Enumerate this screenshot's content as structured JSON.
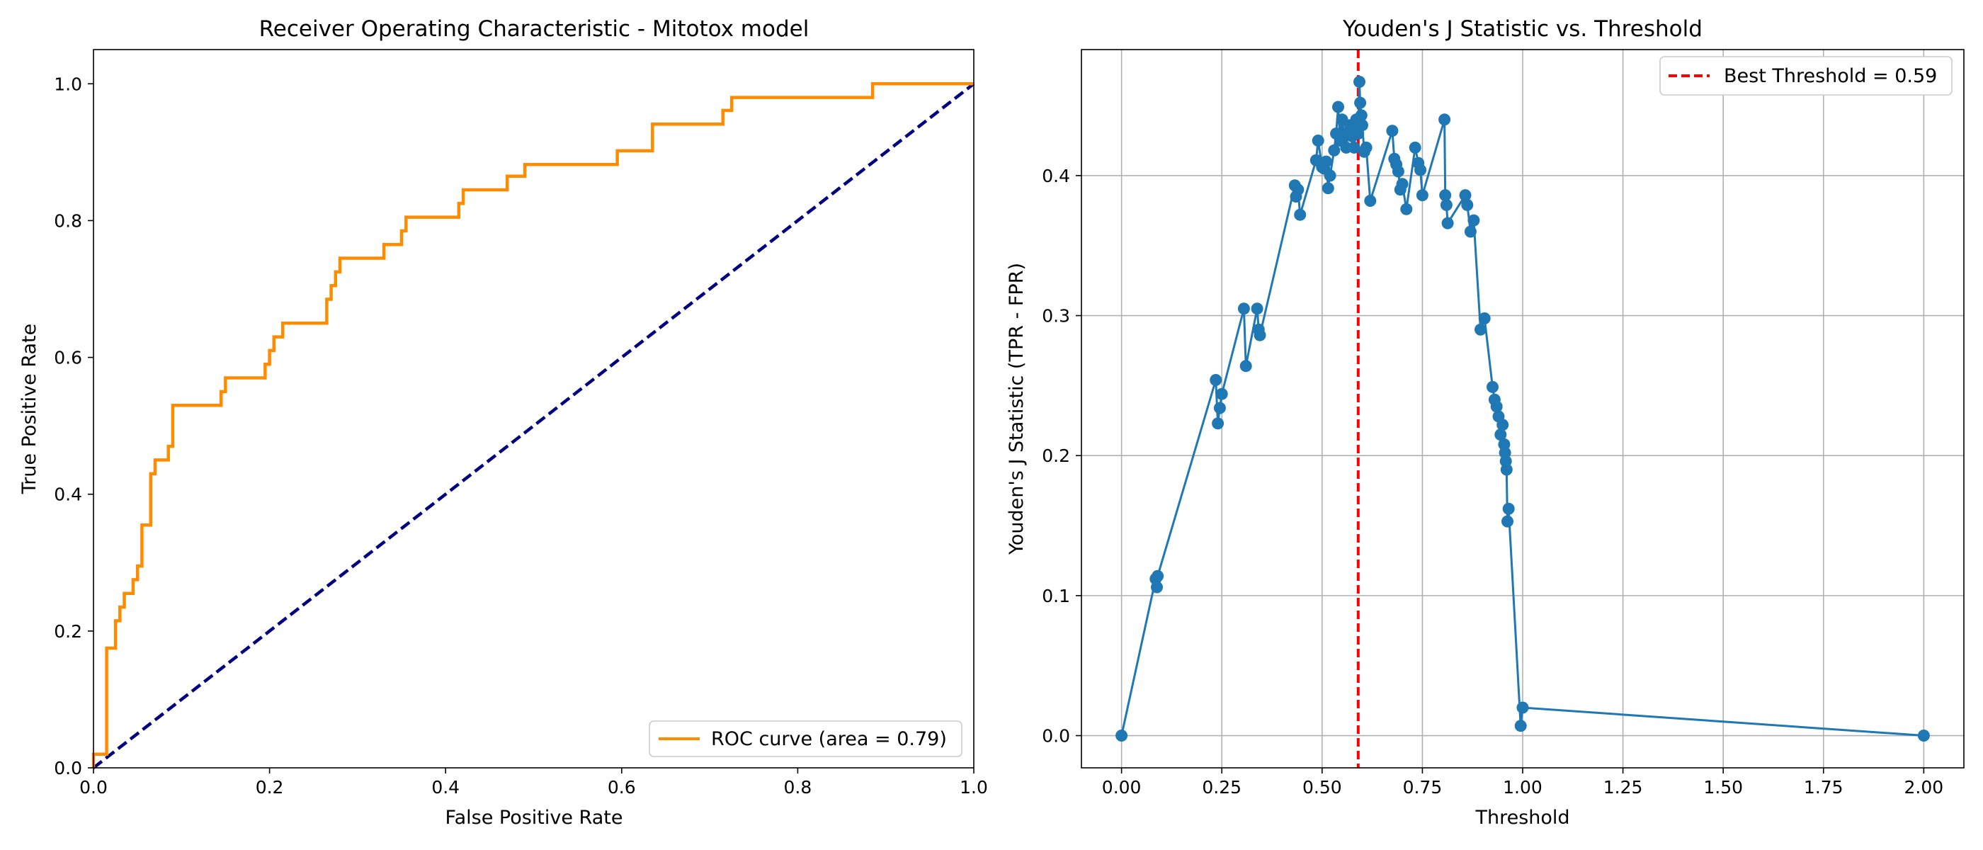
{
  "chart_data": [
    {
      "type": "line",
      "title": "Receiver Operating Characteristic - Mitotox model",
      "xlabel": "False Positive Rate",
      "ylabel": "True Positive Rate",
      "xlim": [
        0,
        1
      ],
      "ylim": [
        0,
        1.05
      ],
      "xticks": [
        0.0,
        0.2,
        0.4,
        0.6,
        0.8,
        1.0
      ],
      "yticks": [
        0.0,
        0.2,
        0.4,
        0.6,
        0.8,
        1.0
      ],
      "xtick_labels": [
        "0.0",
        "0.2",
        "0.4",
        "0.6",
        "0.8",
        "1.0"
      ],
      "ytick_labels": [
        "0.0",
        "0.2",
        "0.4",
        "0.6",
        "0.8",
        "1.0"
      ],
      "grid": false,
      "legend_position": "lower-right",
      "series": [
        {
          "name": "ROC curve (area = 0.79)",
          "color": "#ff8c00",
          "style": "step",
          "x": [
            0,
            0,
            0.015,
            0.015,
            0.025,
            0.025,
            0.03,
            0.03,
            0.035,
            0.035,
            0.045,
            0.045,
            0.05,
            0.05,
            0.055,
            0.055,
            0.065,
            0.065,
            0.07,
            0.07,
            0.085,
            0.085,
            0.09,
            0.09,
            0.145,
            0.145,
            0.15,
            0.15,
            0.195,
            0.195,
            0.2,
            0.2,
            0.205,
            0.205,
            0.215,
            0.215,
            0.265,
            0.265,
            0.27,
            0.27,
            0.275,
            0.275,
            0.28,
            0.28,
            0.33,
            0.33,
            0.35,
            0.35,
            0.355,
            0.355,
            0.415,
            0.415,
            0.42,
            0.42,
            0.47,
            0.47,
            0.49,
            0.49,
            0.595,
            0.595,
            0.635,
            0.635,
            0.715,
            0.715,
            0.725,
            0.725,
            0.885,
            0.885,
            1.0
          ],
          "y": [
            0,
            0.02,
            0.02,
            0.175,
            0.175,
            0.215,
            0.215,
            0.235,
            0.235,
            0.255,
            0.255,
            0.275,
            0.275,
            0.295,
            0.295,
            0.355,
            0.355,
            0.43,
            0.43,
            0.45,
            0.45,
            0.47,
            0.47,
            0.53,
            0.53,
            0.55,
            0.55,
            0.57,
            0.57,
            0.59,
            0.59,
            0.61,
            0.61,
            0.63,
            0.63,
            0.65,
            0.65,
            0.685,
            0.685,
            0.705,
            0.705,
            0.725,
            0.725,
            0.745,
            0.745,
            0.765,
            0.765,
            0.785,
            0.785,
            0.805,
            0.805,
            0.825,
            0.825,
            0.845,
            0.845,
            0.865,
            0.865,
            0.882,
            0.882,
            0.902,
            0.902,
            0.941,
            0.941,
            0.961,
            0.961,
            0.98,
            0.98,
            1.0,
            1.0
          ]
        },
        {
          "name": "",
          "color": "#000080",
          "style": "dashed",
          "x": [
            0,
            1
          ],
          "y": [
            0,
            1
          ]
        }
      ]
    },
    {
      "type": "line",
      "title": "Youden's J Statistic vs. Threshold",
      "xlabel": "Threshold",
      "ylabel": "Youden's J Statistic (TPR - FPR)",
      "xlim": [
        -0.1,
        2.1
      ],
      "ylim": [
        -0.023,
        0.49
      ],
      "xticks": [
        0.0,
        0.25,
        0.5,
        0.75,
        1.0,
        1.25,
        1.5,
        1.75,
        2.0
      ],
      "yticks": [
        0.0,
        0.1,
        0.2,
        0.3,
        0.4
      ],
      "xtick_labels": [
        "0.00",
        "0.25",
        "0.50",
        "0.75",
        "1.00",
        "1.25",
        "1.50",
        "1.75",
        "2.00"
      ],
      "ytick_labels": [
        "0.0",
        "0.1",
        "0.2",
        "0.3",
        "0.4"
      ],
      "grid": true,
      "legend_position": "upper-right",
      "best_threshold": {
        "label": "Best Threshold = 0.59",
        "x": 0.59,
        "color": "#ff0000"
      },
      "series": [
        {
          "name": "",
          "color": "#1f77b4",
          "marker": "circle",
          "x": [
            2.0,
            1.0,
            0.995,
            0.965,
            0.962,
            0.96,
            0.958,
            0.956,
            0.954,
            0.95,
            0.945,
            0.94,
            0.935,
            0.93,
            0.925,
            0.905,
            0.895,
            0.878,
            0.87,
            0.862,
            0.857,
            0.813,
            0.81,
            0.807,
            0.805,
            0.75,
            0.745,
            0.74,
            0.732,
            0.71,
            0.7,
            0.695,
            0.69,
            0.685,
            0.68,
            0.675,
            0.62,
            0.61,
            0.605,
            0.6,
            0.598,
            0.595,
            0.593,
            0.59,
            0.585,
            0.58,
            0.575,
            0.57,
            0.565,
            0.56,
            0.555,
            0.55,
            0.545,
            0.54,
            0.535,
            0.53,
            0.52,
            0.515,
            0.51,
            0.505,
            0.5,
            0.49,
            0.485,
            0.445,
            0.44,
            0.435,
            0.432,
            0.345,
            0.342,
            0.338,
            0.31,
            0.305,
            0.25,
            0.245,
            0.24,
            0.235,
            0.09,
            0.088,
            0.085,
            0.0
          ],
          "y": [
            0.0,
            0.02,
            0.007,
            0.162,
            0.153,
            0.19,
            0.196,
            0.202,
            0.208,
            0.222,
            0.215,
            0.228,
            0.235,
            0.24,
            0.249,
            0.298,
            0.29,
            0.368,
            0.36,
            0.379,
            0.386,
            0.366,
            0.379,
            0.386,
            0.44,
            0.386,
            0.404,
            0.409,
            0.42,
            0.376,
            0.394,
            0.39,
            0.403,
            0.408,
            0.412,
            0.432,
            0.382,
            0.42,
            0.417,
            0.436,
            0.443,
            0.452,
            0.467,
            0.43,
            0.44,
            0.42,
            0.428,
            0.436,
            0.43,
            0.42,
            0.43,
            0.44,
            0.425,
            0.449,
            0.43,
            0.418,
            0.4,
            0.391,
            0.41,
            0.405,
            0.406,
            0.425,
            0.411,
            0.372,
            0.39,
            0.385,
            0.393,
            0.286,
            0.29,
            0.305,
            0.264,
            0.305,
            0.244,
            0.234,
            0.223,
            0.254,
            0.114,
            0.106,
            0.112,
            0.0
          ]
        }
      ]
    }
  ]
}
